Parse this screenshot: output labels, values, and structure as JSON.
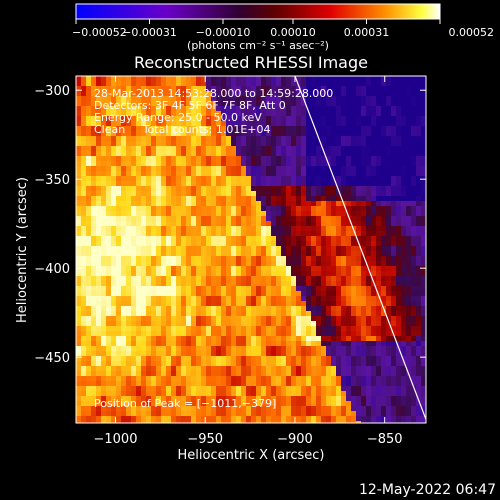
{
  "chart_data": {
    "type": "heatmap",
    "title": "Reconstructed RHESSI Image",
    "xlabel": "Heliocentric X (arcsec)",
    "ylabel": "Heliocentric Y (arcsec)",
    "xlim": [
      -1022,
      -827
    ],
    "ylim": [
      -487,
      -292
    ],
    "xticks": [
      -1000,
      -950,
      -900,
      -850
    ],
    "xtick_labels": [
      "−1000",
      "−950",
      "−900",
      "−850"
    ],
    "yticks": [
      -300,
      -350,
      -400,
      -450
    ],
    "ytick_labels": [
      "−300",
      "−350",
      "−400",
      "−450"
    ],
    "colorbar": {
      "range": [
        -0.00052,
        0.00052
      ],
      "ticks": [
        -0.00052,
        -0.00031,
        -0.0001,
        0.0001,
        0.00031,
        0.00052
      ],
      "tick_labels": [
        "−0.00052",
        "−0.00031",
        "−0.00010",
        "0.00010",
        "0.00031",
        "0.00052"
      ],
      "unit_label": "(photons cm⁻² s⁻¹ asec⁻²)",
      "colormap": "blue-purple-red-orange-yellow-white"
    },
    "annotations": [
      "28-Mar-2013 14:53:28.000 to 14:59:28.000",
      "Detectors: 3F 4F 5F 6F 7F 8F, Att 0",
      "Energy Range: 25.0 - 50.0 keV",
      "Clean     Total counts: 1.01E+04"
    ],
    "peak_label": "Position of Peak = [−1011,−379]",
    "peak_position": [
      -1011,
      -379
    ],
    "limb_line": [
      [
        -900,
        -292
      ],
      [
        -827,
        -485
      ]
    ],
    "grid": false
  },
  "footer": {
    "date_stamp": "12-May-2022 06:47"
  }
}
